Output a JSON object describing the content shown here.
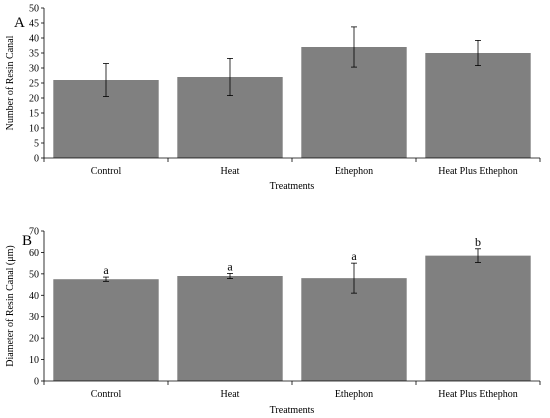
{
  "colors": {
    "bar": "#808080",
    "axis": "#000000",
    "error_bar": "#000000",
    "background": "#ffffff"
  },
  "chart_data": [
    {
      "type": "bar",
      "panel_label": "A",
      "categories": [
        "Control",
        "Heat",
        "Ethephon",
        "Heat Plus Ethephon"
      ],
      "values": [
        26,
        27,
        37,
        35
      ],
      "errors": [
        5.5,
        6.2,
        6.7,
        4.2
      ],
      "significance": [],
      "xlabel": "Treatments",
      "ylabel": "Number of Resin Canal",
      "ylim": [
        0,
        50
      ],
      "yticks": [
        0,
        5,
        10,
        15,
        20,
        25,
        30,
        35,
        40,
        45,
        50
      ],
      "grid": false,
      "legend": "none"
    },
    {
      "type": "bar",
      "panel_label": "B",
      "categories": [
        "Control",
        "Heat",
        "Ethephon",
        "Heat Plus Ethephon"
      ],
      "values": [
        47.5,
        49,
        48,
        58.5
      ],
      "errors": [
        1,
        1.2,
        7,
        3.2
      ],
      "significance": [
        "a",
        "a",
        "a",
        "b"
      ],
      "xlabel": "Treatments",
      "ylabel": "Diameter of Resin Canal (μm)",
      "ylim": [
        0,
        70
      ],
      "yticks": [
        0,
        10,
        20,
        30,
        40,
        50,
        60,
        70
      ],
      "grid": false,
      "legend": "none"
    }
  ]
}
